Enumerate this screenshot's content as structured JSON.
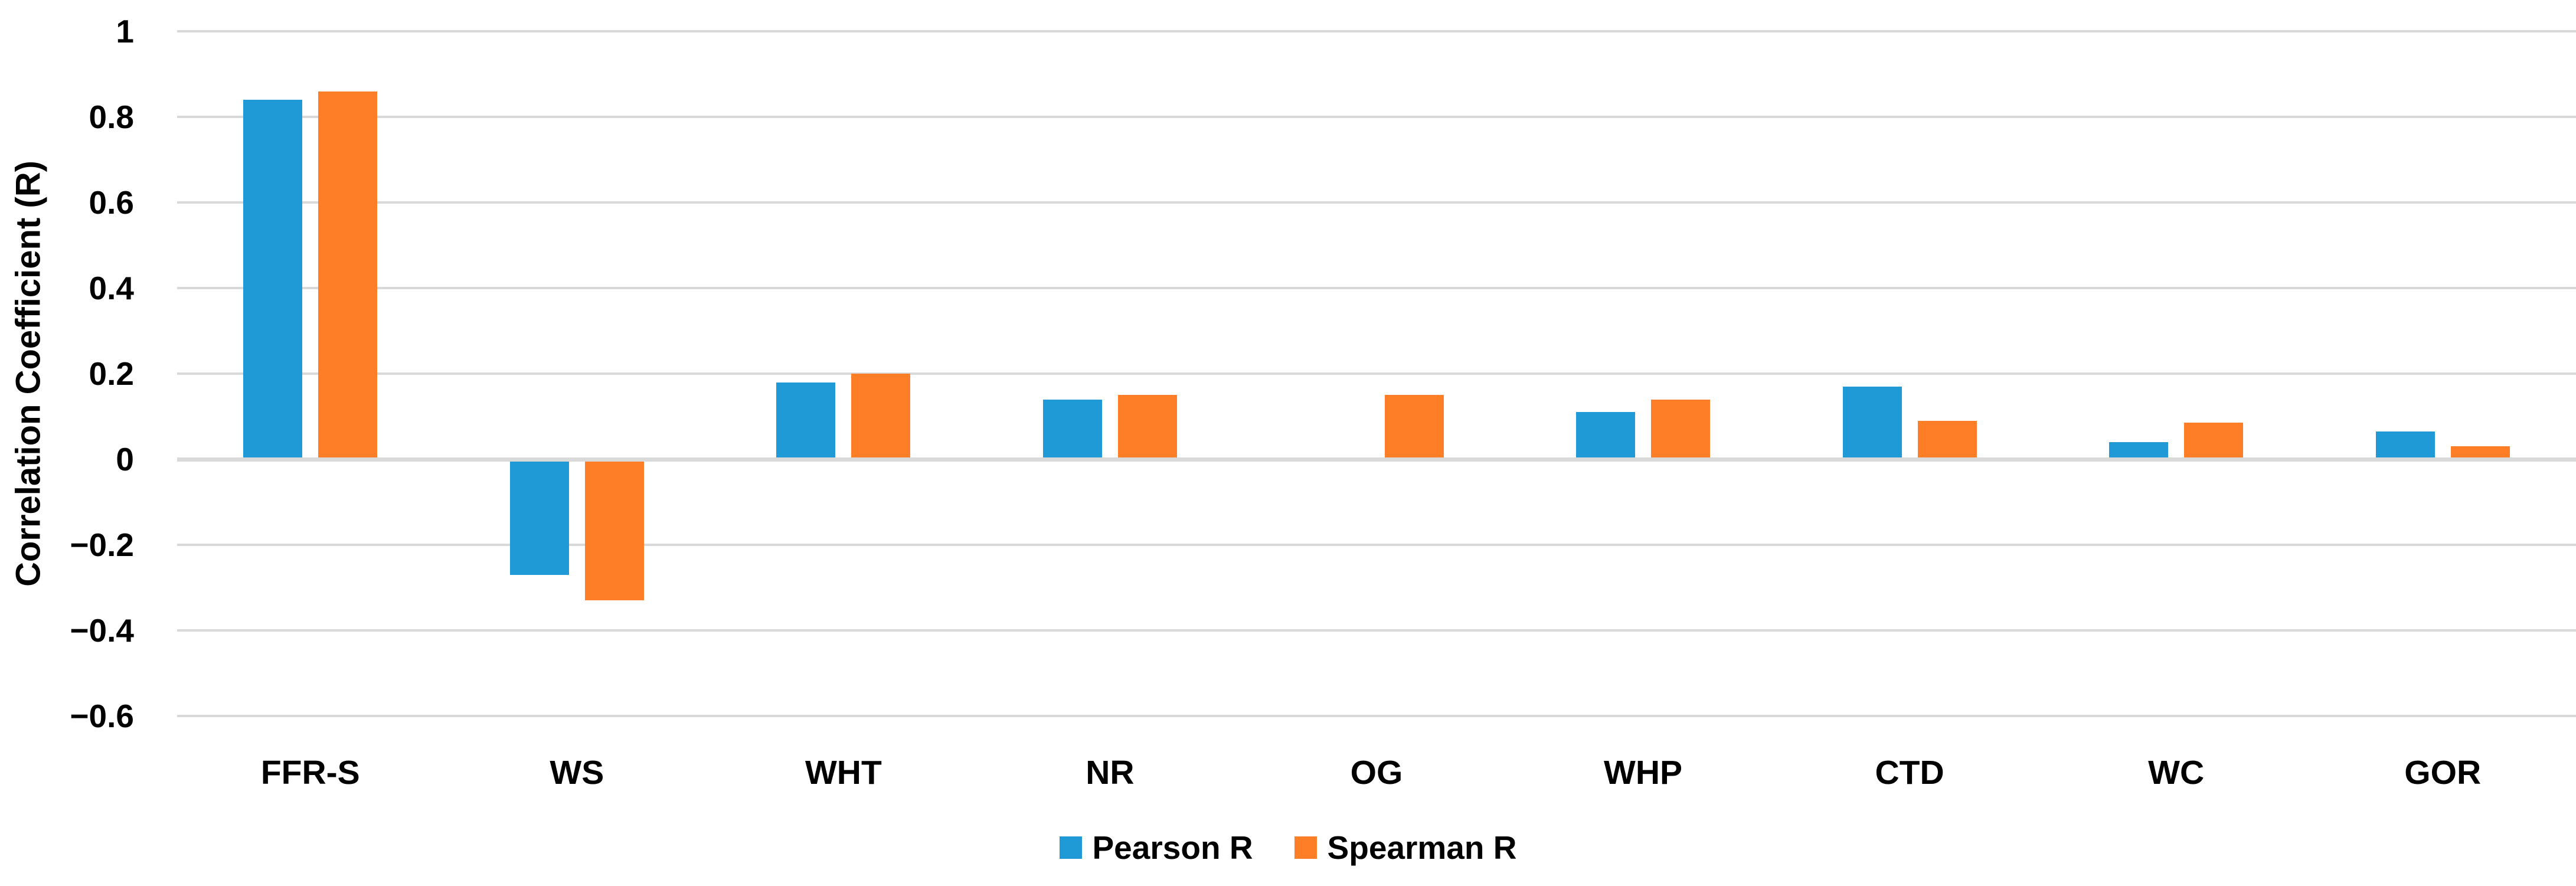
{
  "chart_data": {
    "type": "bar",
    "title": "",
    "xlabel": "",
    "ylabel": "Correlation Coefficient (R)",
    "categories": [
      "FFR-S",
      "WS",
      "WHT",
      "NR",
      "OG",
      "WHP",
      "CTD",
      "WC",
      "GOR"
    ],
    "series": [
      {
        "name": "Pearson R",
        "color": "#1F9AD6",
        "values": [
          0.84,
          -0.27,
          0.18,
          0.14,
          0,
          0.11,
          0.17,
          0.04,
          0.065
        ]
      },
      {
        "name": "Spearman R",
        "color": "#FD7E27",
        "values": [
          0.86,
          -0.33,
          0.2,
          0.15,
          0.15,
          0.14,
          0.09,
          0.085,
          0.03
        ]
      }
    ],
    "ylim": [
      -0.6,
      1.0
    ],
    "yticks": [
      {
        "v": 1,
        "label": "1"
      },
      {
        "v": 0.8,
        "label": "0.8"
      },
      {
        "v": 0.6,
        "label": "0.6"
      },
      {
        "v": 0.4,
        "label": "0.4"
      },
      {
        "v": 0.2,
        "label": "0.2"
      },
      {
        "v": 0,
        "label": "0"
      },
      {
        "v": -0.2,
        "label": "−0.2"
      },
      {
        "v": -0.4,
        "label": "−0.4"
      },
      {
        "v": -0.6,
        "label": "−0.6"
      }
    ],
    "grid": true,
    "legend_position": "bottom",
    "gridline_color": "#D9D9D9",
    "background_color": "#FFFFFF"
  }
}
